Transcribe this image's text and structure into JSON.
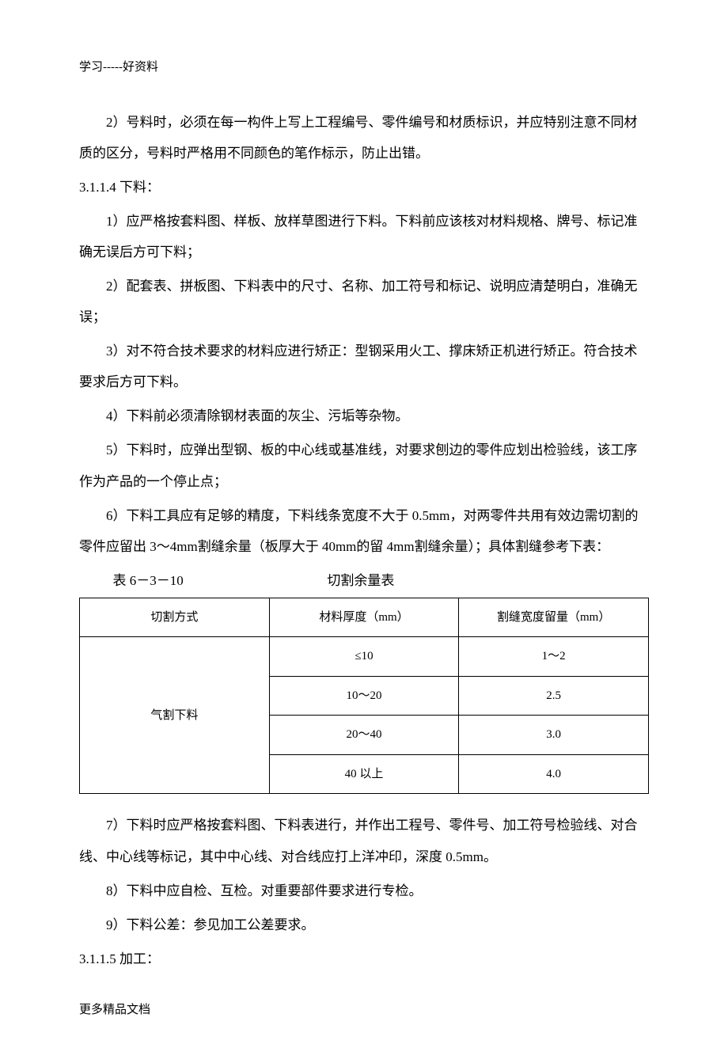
{
  "header": "学习-----好资料",
  "footer": "更多精品文档",
  "styling": {
    "page_bg": "#ffffff",
    "text_color": "#000000",
    "border_color": "#000000",
    "body_fontsize": 17,
    "header_fontsize": 15,
    "table_fontsize": 15,
    "line_height": 2.3,
    "font_family": "SimSun"
  },
  "paragraphs": {
    "p1": "2）号料时，必须在每一构件上写上工程编号、零件编号和材质标识，并应特别注意不同材质的区分，号料时严格用不同颜色的笔作标示，防止出错。",
    "s1": "3.1.1.4 下料：",
    "p2": "1）应严格按套料图、样板、放样草图进行下料。下料前应该核对材料规格、牌号、标记准确无误后方可下料；",
    "p3": "2）配套表、拼板图、下料表中的尺寸、名称、加工符号和标记、说明应清楚明白，准确无误；",
    "p4": "3）对不符合技术要求的材料应进行矫正：型钢采用火工、撑床矫正机进行矫正。符合技术要求后方可下料。",
    "p5": "4）下料前必须清除钢材表面的灰尘、污垢等杂物。",
    "p6": "5）下料时，应弹出型钢、板的中心线或基准线，对要求刨边的零件应划出检验线，该工序作为产品的一个停止点；",
    "p7": "6）下料工具应有足够的精度，下料线条宽度不大于 0.5mm，对两零件共用有效边需切割的零件应留出 3～4mm割缝余量（板厚大于 40mm的留 4mm割缝余量）；具体割缝参考下表：",
    "p8": "7）下料时应严格按套料图、下料表进行，并作出工程号、零件号、加工符号检验线、对合线、中心线等标记，其中中心线、对合线应打上洋冲印，深度 0.5mm。",
    "p9": "8）下料中应自检、互检。对重要部件要求进行专检。",
    "p10": "9）下料公差：参见加工公差要求。",
    "s2": "3.1.1.5 加工："
  },
  "table": {
    "title_left": "表 6－3－10",
    "title_center": "切割余量表",
    "columns": [
      "切割方式",
      "材料厚度（mm）",
      "割缝宽度留量（mm）"
    ],
    "method": "气割下料",
    "rows": [
      {
        "thickness": "≤10",
        "allowance": "1～2"
      },
      {
        "thickness": "10～20",
        "allowance": "2.5"
      },
      {
        "thickness": "20～40",
        "allowance": "3.0"
      },
      {
        "thickness": "40 以上",
        "allowance": "4.0"
      }
    ]
  }
}
